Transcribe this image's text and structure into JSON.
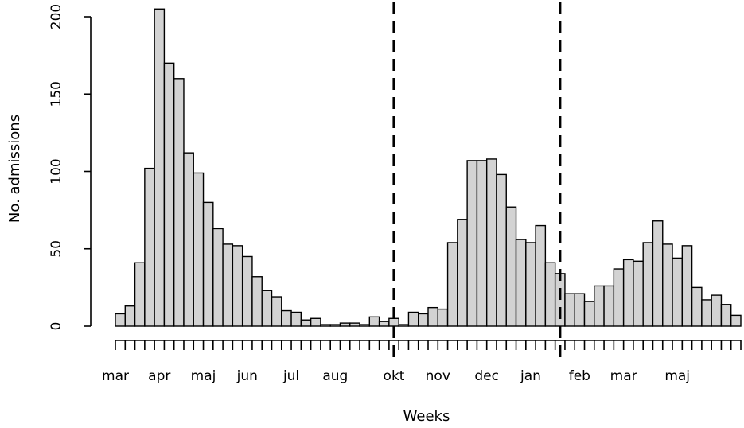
{
  "chart_data": {
    "type": "bar",
    "xlabel": "Weeks",
    "ylabel": "No. admissions",
    "ylim": [
      0,
      200
    ],
    "y_ticks": [
      0,
      50,
      100,
      150,
      200
    ],
    "grid": false,
    "legend": null,
    "values": [
      8,
      13,
      41,
      102,
      205,
      170,
      160,
      112,
      99,
      80,
      63,
      53,
      52,
      45,
      32,
      23,
      19,
      10,
      9,
      4,
      5,
      1,
      1,
      2,
      2,
      1,
      6,
      3,
      5,
      1,
      9,
      8,
      12,
      11,
      54,
      69,
      107,
      107,
      108,
      98,
      77,
      56,
      54,
      65,
      41,
      34,
      21,
      21,
      16,
      26,
      26,
      37,
      43,
      42,
      54,
      68,
      53,
      44,
      52,
      25,
      17,
      20,
      14,
      7
    ],
    "month_labels": [
      {
        "label": "mar",
        "week": 0
      },
      {
        "label": "apr",
        "week": 4.5
      },
      {
        "label": "maj",
        "week": 9
      },
      {
        "label": "jun",
        "week": 13.5
      },
      {
        "label": "jul",
        "week": 18
      },
      {
        "label": "aug",
        "week": 22.5
      },
      {
        "label": "okt",
        "week": 28.5
      },
      {
        "label": "nov",
        "week": 33
      },
      {
        "label": "dec",
        "week": 38
      },
      {
        "label": "jan",
        "week": 42.5
      },
      {
        "label": "feb",
        "week": 47.5
      },
      {
        "label": "mar",
        "week": 52
      },
      {
        "label": "maj",
        "week": 57.5
      }
    ],
    "dashed_vlines_week": [
      28.5,
      45.5
    ]
  }
}
